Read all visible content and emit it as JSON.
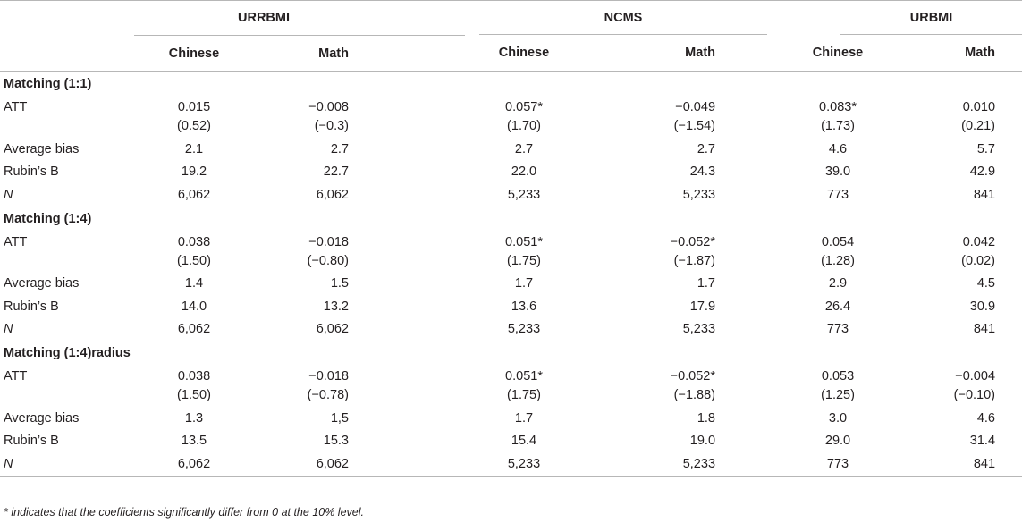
{
  "groups": [
    "URRBMI",
    "NCMS",
    "URBMI"
  ],
  "subheaders": [
    "Chinese",
    "Math",
    "Chinese",
    "Math",
    "Chinese",
    "Math"
  ],
  "sections": [
    {
      "title": "Matching (1:1)",
      "att": {
        "label": "ATT",
        "coef": [
          "0.015",
          "−0.008",
          "0.057*",
          "−0.049",
          "0.083*",
          "0.010"
        ],
        "t": [
          "(0.52)",
          "(−0.3)",
          "(1.70)",
          "(−1.54)",
          "(1.73)",
          "(0.21)"
        ]
      },
      "rows": [
        {
          "label": "Average bias",
          "values": [
            "2.1",
            "2.7",
            "2.7",
            "2.7",
            "4.6",
            "5.7"
          ]
        },
        {
          "label": "Rubin’s B",
          "values": [
            "19.2",
            "22.7",
            "22.0",
            "24.3",
            "39.0",
            "42.9"
          ]
        },
        {
          "label": "N",
          "values": [
            "6,062",
            "6,062",
            "5,233",
            "5,233",
            "773",
            "841"
          ]
        }
      ]
    },
    {
      "title": "Matching (1:4)",
      "att": {
        "label": "ATT",
        "coef": [
          "0.038",
          "−0.018",
          "0.051*",
          "−0.052*",
          "0.054",
          "0.042"
        ],
        "t": [
          "(1.50)",
          "(−0.80)",
          "(1.75)",
          "(−1.87)",
          "(1.28)",
          "(0.02)"
        ]
      },
      "rows": [
        {
          "label": "Average bias",
          "values": [
            "1.4",
            "1.5",
            "1.7",
            "1.7",
            "2.9",
            "4.5"
          ]
        },
        {
          "label": "Rubin’s B",
          "values": [
            "14.0",
            "13.2",
            "13.6",
            "17.9",
            "26.4",
            "30.9"
          ]
        },
        {
          "label": "N",
          "values": [
            "6,062",
            "6,062",
            "5,233",
            "5,233",
            "773",
            "841"
          ]
        }
      ]
    },
    {
      "title": "Matching (1:4)radius",
      "att": {
        "label": "ATT",
        "coef": [
          "0.038",
          "−0.018",
          "0.051*",
          "−0.052*",
          "0.053",
          "−0.004"
        ],
        "t": [
          "(1.50)",
          "(−0.78)",
          "(1.75)",
          "(−1.88)",
          "(1.25)",
          "(−0.10)"
        ]
      },
      "rows": [
        {
          "label": "Average bias",
          "values": [
            "1.3",
            "1,5",
            "1.7",
            "1.8",
            "3.0",
            "4.6"
          ]
        },
        {
          "label": "Rubin’s B",
          "values": [
            "13.5",
            "15.3",
            "15.4",
            "19.0",
            "29.0",
            "31.4"
          ]
        },
        {
          "label": "N",
          "values": [
            "6,062",
            "6,062",
            "5,233",
            "5,233",
            "773",
            "841"
          ]
        }
      ]
    }
  ],
  "footnote": "* indicates that the coefficients significantly differ from 0 at the 10% level."
}
